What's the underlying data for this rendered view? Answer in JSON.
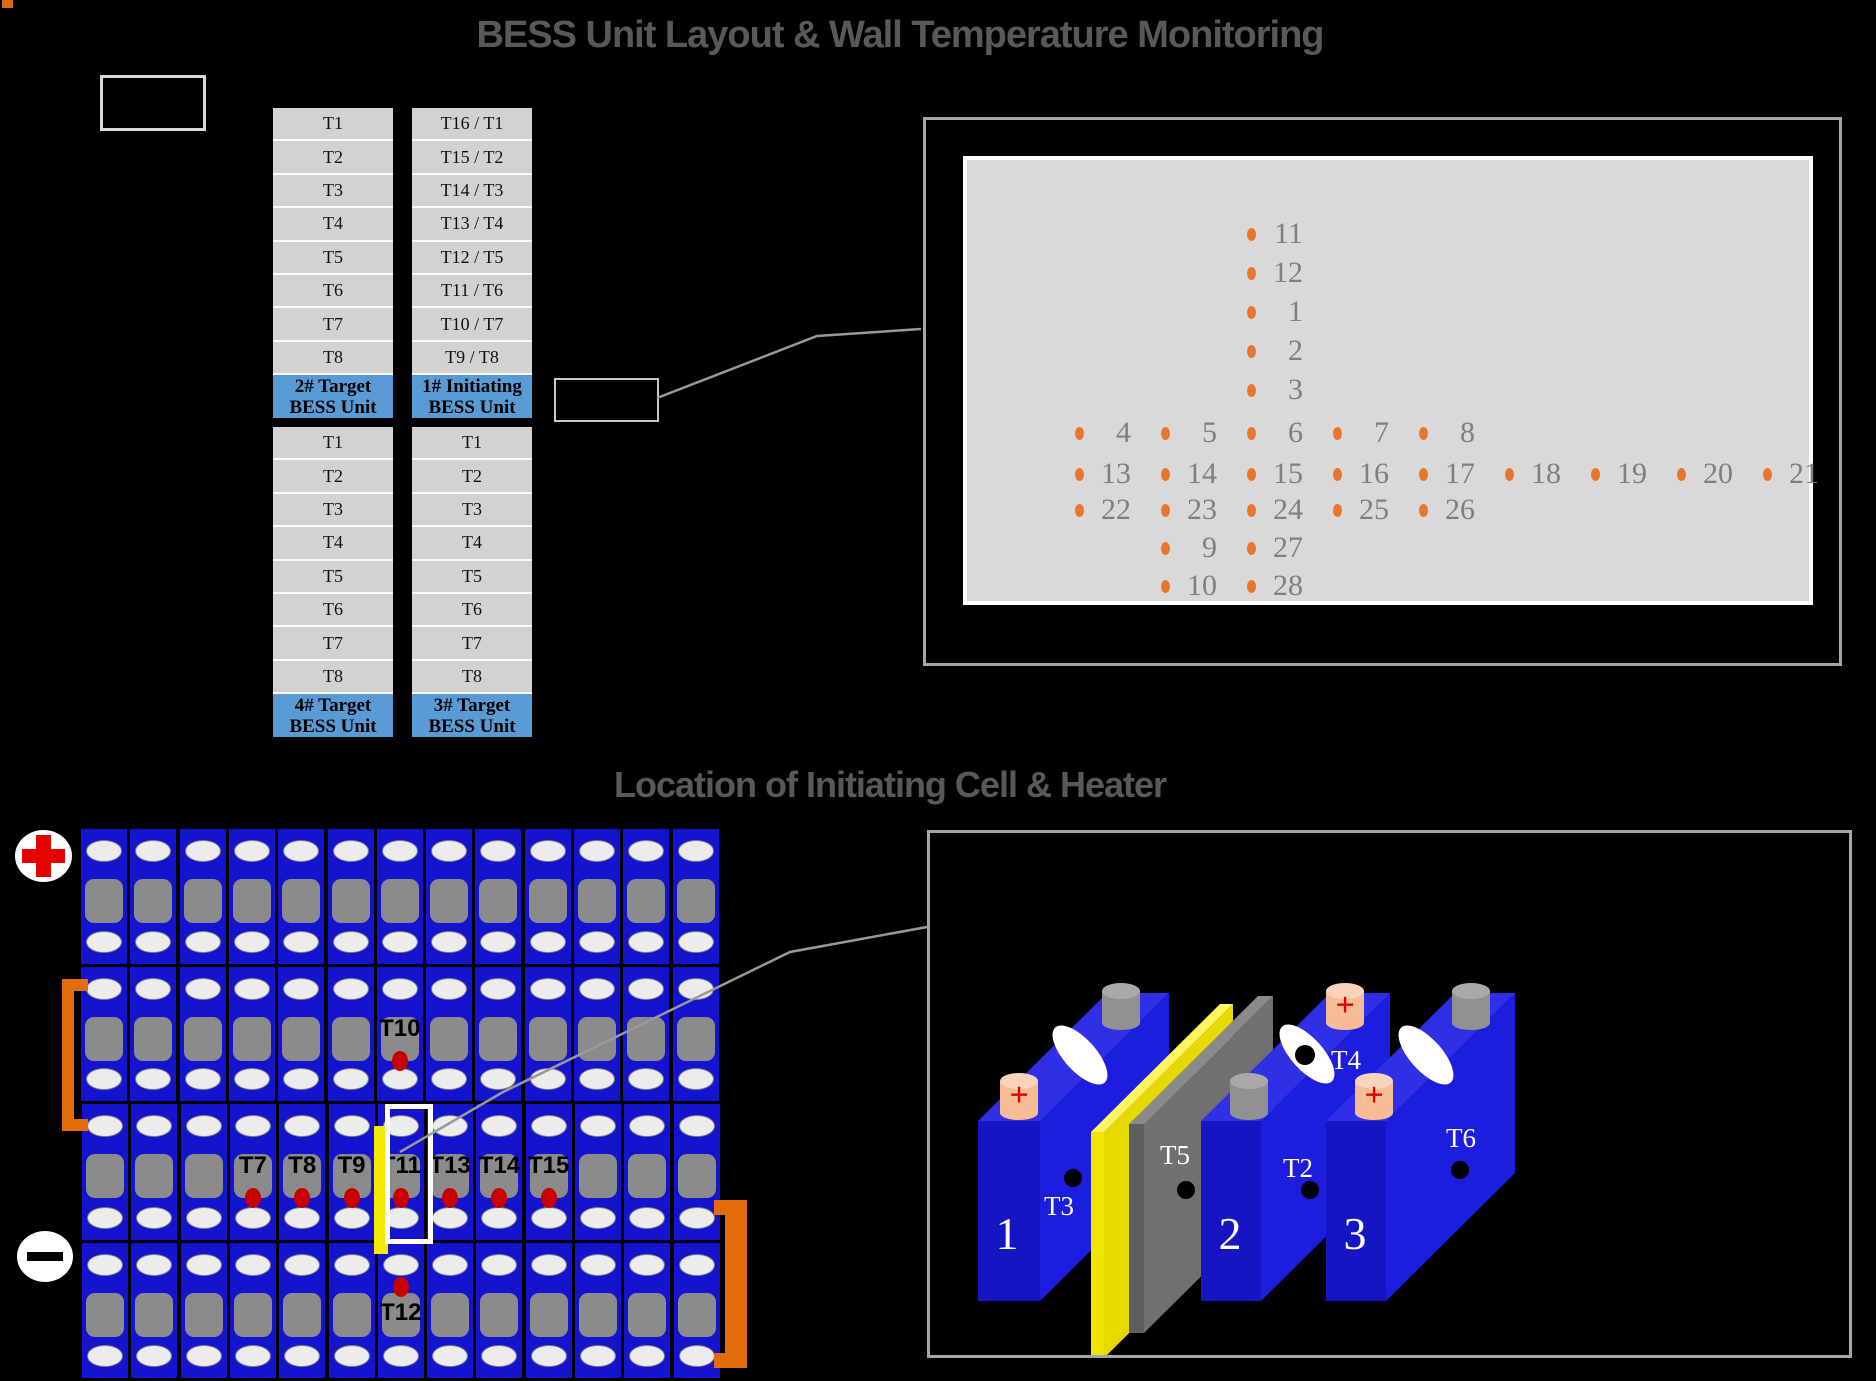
{
  "page": {
    "title_top": "BESS Unit Layout & Wall Temperature Monitoring",
    "title_bottom": "Location of Initiating Cell & Heater"
  },
  "colors": {
    "title_gray": "#595959",
    "header_blue": "#5B9BD5",
    "table_gray": "#D2D2D2",
    "dot_orange": "#E8762C",
    "number_gray": "#7B8087",
    "battery_blue": "#1414CE",
    "heater_yellow": "#F5EA00",
    "bracket_orange": "#E36C0A",
    "sensor_red": "#C80000",
    "panel_border_gray": "#A6A6A6",
    "wall_gray": "#D9D9D9",
    "leader_gray": "#999999"
  },
  "bess_layout": {
    "columns": [
      {
        "id": "unit2",
        "rows": [
          "T1",
          "T2",
          "T3",
          "T4",
          "T5",
          "T6",
          "T7",
          "T8"
        ],
        "header_line1": "2# Target",
        "header_line2": "BESS Unit"
      },
      {
        "id": "unit1",
        "rows": [
          "T16 / T1",
          "T15 / T2",
          "T14 / T3",
          "T13 / T4",
          "T12 / T5",
          "T11 / T6",
          "T10 / T7",
          "T9 / T8"
        ],
        "header_line1": "1# Initiating",
        "header_line2": "BESS Unit"
      },
      {
        "id": "unit4",
        "rows": [
          "T1",
          "T2",
          "T3",
          "T4",
          "T5",
          "T6",
          "T7",
          "T8"
        ],
        "header_line1": "4# Target",
        "header_line2": "BESS Unit"
      },
      {
        "id": "unit3",
        "rows": [
          "T1",
          "T2",
          "T3",
          "T4",
          "T5",
          "T6",
          "T7",
          "T8"
        ],
        "header_line1": "3# Target",
        "header_line2": "BESS Unit"
      }
    ]
  },
  "wall_monitor": {
    "dot_rows": [
      {
        "dots": [
          {
            "c": 2,
            "n": "11"
          }
        ]
      },
      {
        "dots": [
          {
            "c": 2,
            "n": "12"
          }
        ]
      },
      {
        "dots": [
          {
            "c": 2,
            "n": "1"
          }
        ]
      },
      {
        "dots": [
          {
            "c": 2,
            "n": "2"
          }
        ]
      },
      {
        "dots": [
          {
            "c": 2,
            "n": "3"
          }
        ]
      },
      {
        "dots": [
          {
            "c": 0,
            "n": "4"
          },
          {
            "c": 1,
            "n": "5"
          },
          {
            "c": 2,
            "n": "6"
          },
          {
            "c": 3,
            "n": "7"
          },
          {
            "c": 4,
            "n": "8"
          }
        ]
      },
      {
        "dots": [
          {
            "c": 0,
            "n": "13"
          },
          {
            "c": 1,
            "n": "14"
          },
          {
            "c": 2,
            "n": "15"
          },
          {
            "c": 3,
            "n": "16"
          },
          {
            "c": 4,
            "n": "17"
          },
          {
            "c": 5,
            "n": "18"
          },
          {
            "c": 6,
            "n": "19"
          },
          {
            "c": 7,
            "n": "20"
          },
          {
            "c": 8,
            "n": "21"
          }
        ]
      },
      {
        "dots": [
          {
            "c": 0,
            "n": "22"
          },
          {
            "c": 1,
            "n": "23"
          },
          {
            "c": 2,
            "n": "24"
          },
          {
            "c": 3,
            "n": "25"
          },
          {
            "c": 4,
            "n": "26"
          }
        ]
      },
      {
        "dots": [
          {
            "c": 1,
            "n": "9"
          },
          {
            "c": 2,
            "n": "27"
          }
        ]
      },
      {
        "dots": [
          {
            "c": 1,
            "n": "10"
          },
          {
            "c": 2,
            "n": "28"
          }
        ]
      }
    ]
  },
  "pack": {
    "plus_symbol": "+",
    "minus_symbol": "-",
    "row_labels": [
      {},
      {
        "6": {
          "label": "T10"
        }
      },
      {
        "3": {
          "label": "T7"
        },
        "4": {
          "label": "T8"
        },
        "5": {
          "label": "T9"
        },
        "6": {
          "label": "T11"
        },
        "7": {
          "label": "T13"
        },
        "8": {
          "label": "T14"
        },
        "9": {
          "label": "T15"
        }
      },
      {
        "6": {
          "label": "T12",
          "dot_above": true
        }
      }
    ]
  },
  "heater_scene": {
    "plus_sign": "+",
    "cells": [
      {
        "number": "1",
        "side_sensor": "T3",
        "front_terminal": "positive",
        "back_terminal": "neutral"
      },
      {
        "number": "2",
        "side_sensor": "T2",
        "oval_sensor": "T4",
        "front_terminal": "neutral",
        "back_terminal": "positive"
      },
      {
        "number": "3",
        "side_sensor": "T6",
        "front_terminal": "positive",
        "back_terminal": "neutral"
      }
    ],
    "plates": [
      {
        "name": "heater-pad",
        "sensor": null
      },
      {
        "name": "spacer-plate",
        "sensor": "T5"
      }
    ]
  }
}
